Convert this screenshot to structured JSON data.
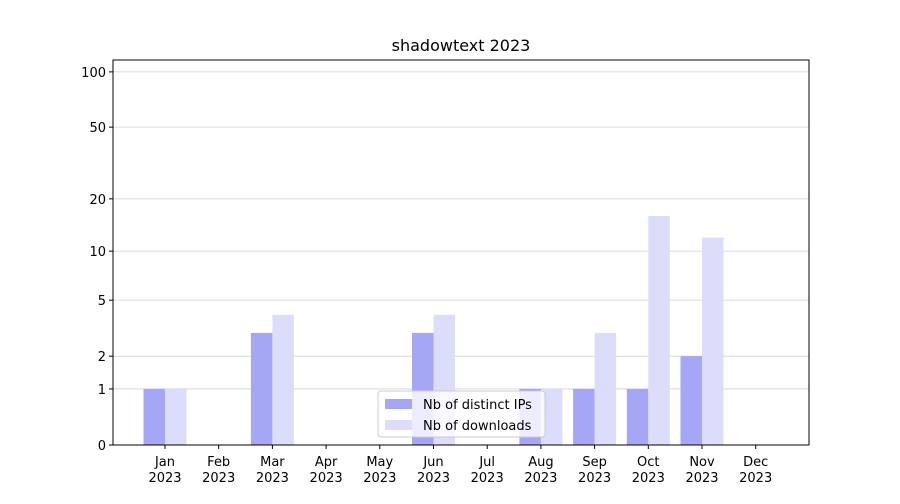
{
  "chart_data": {
    "type": "bar",
    "title": "shadowtext 2023",
    "scale": "log1p",
    "categories": [
      [
        "Jan",
        "2023"
      ],
      [
        "Feb",
        "2023"
      ],
      [
        "Mar",
        "2023"
      ],
      [
        "Apr",
        "2023"
      ],
      [
        "May",
        "2023"
      ],
      [
        "Jun",
        "2023"
      ],
      [
        "Jul",
        "2023"
      ],
      [
        "Aug",
        "2023"
      ],
      [
        "Sep",
        "2023"
      ],
      [
        "Oct",
        "2023"
      ],
      [
        "Nov",
        "2023"
      ],
      [
        "Dec",
        "2023"
      ]
    ],
    "series": [
      {
        "name": "Nb of distinct IPs",
        "color": "#a6a6f7",
        "values": [
          1,
          0,
          3,
          0,
          0,
          3,
          0,
          1,
          1,
          1,
          2,
          0
        ]
      },
      {
        "name": "Nb of downloads",
        "color": "#dcdcfb",
        "values": [
          1,
          0,
          4,
          0,
          0,
          4,
          0,
          1,
          3,
          16,
          12,
          0
        ]
      }
    ],
    "ylim": [
      0,
      116
    ],
    "yticks": [
      0,
      1,
      2,
      5,
      10,
      20,
      50,
      100
    ],
    "grid": true,
    "legend": "lower center"
  }
}
